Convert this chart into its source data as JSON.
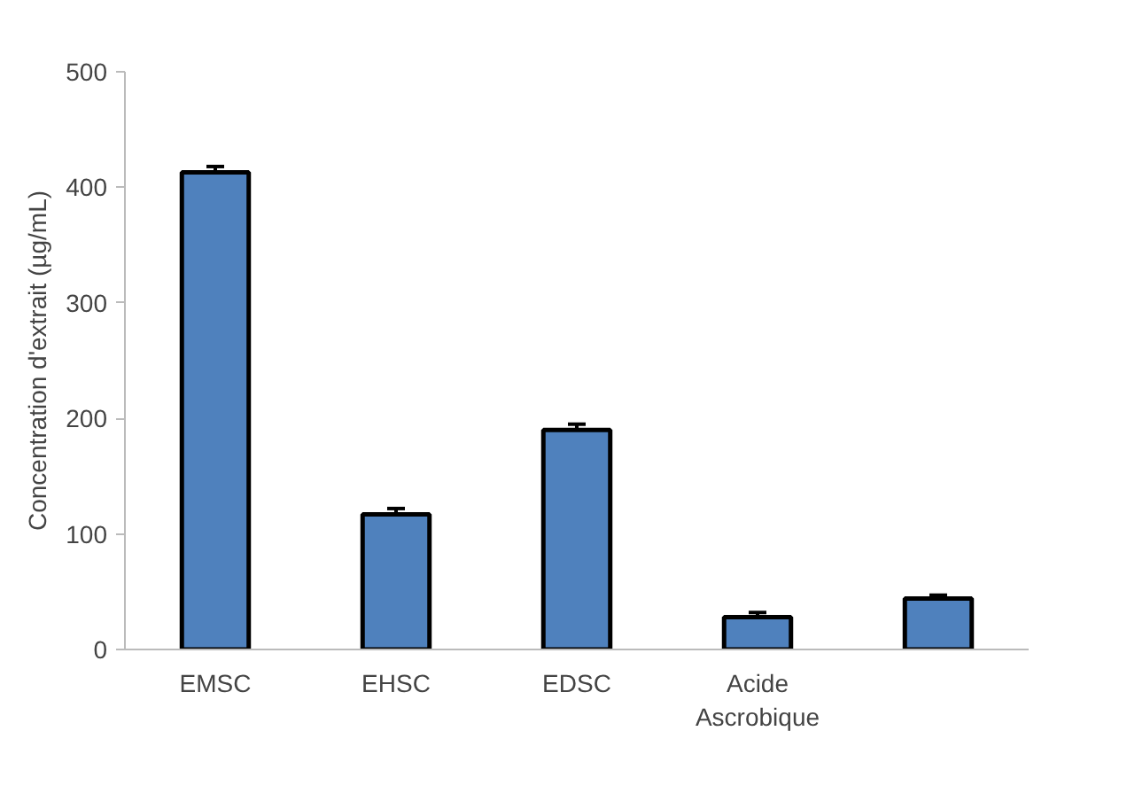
{
  "chart_data": {
    "type": "bar",
    "ylabel": "Concentration d'extrait (µg/mL)",
    "categories": [
      "EMSC",
      "EHSC",
      "EDSC",
      "Acide Ascrobique",
      null
    ],
    "values": [
      413,
      117,
      190,
      28,
      44
    ],
    "errors": [
      5,
      5,
      5,
      4,
      3
    ],
    "color": "#4f81bd",
    "ylim": [
      0,
      500
    ],
    "yticks": [
      0,
      100,
      200,
      300,
      400,
      500
    ],
    "grid": false
  }
}
